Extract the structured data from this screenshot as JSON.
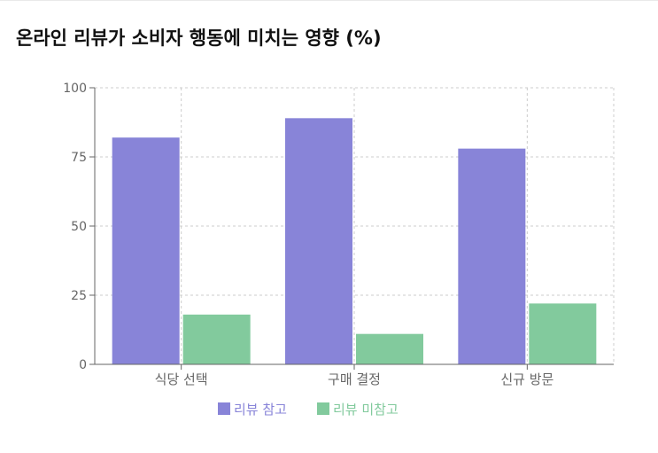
{
  "title": "온라인 리뷰가 소비자 행동에 미치는 영향 (%)",
  "colors": {
    "series1": "#8884d8",
    "series2": "#82ca9d",
    "grid": "#cccccc",
    "axis": "#666666"
  },
  "chart_data": {
    "type": "bar",
    "title": "온라인 리뷰가 소비자 행동에 미치는 영향 (%)",
    "categories": [
      "식당 선택",
      "구매 결정",
      "신규 방문"
    ],
    "series": [
      {
        "name": "리뷰 참고",
        "values": [
          82,
          89,
          78
        ]
      },
      {
        "name": "리뷰 미참고",
        "values": [
          18,
          11,
          22
        ]
      }
    ],
    "yticks": [
      "0",
      "25",
      "50",
      "75",
      "100"
    ],
    "ylim": [
      0,
      100
    ],
    "grid": true,
    "legend": "bottom-center"
  }
}
